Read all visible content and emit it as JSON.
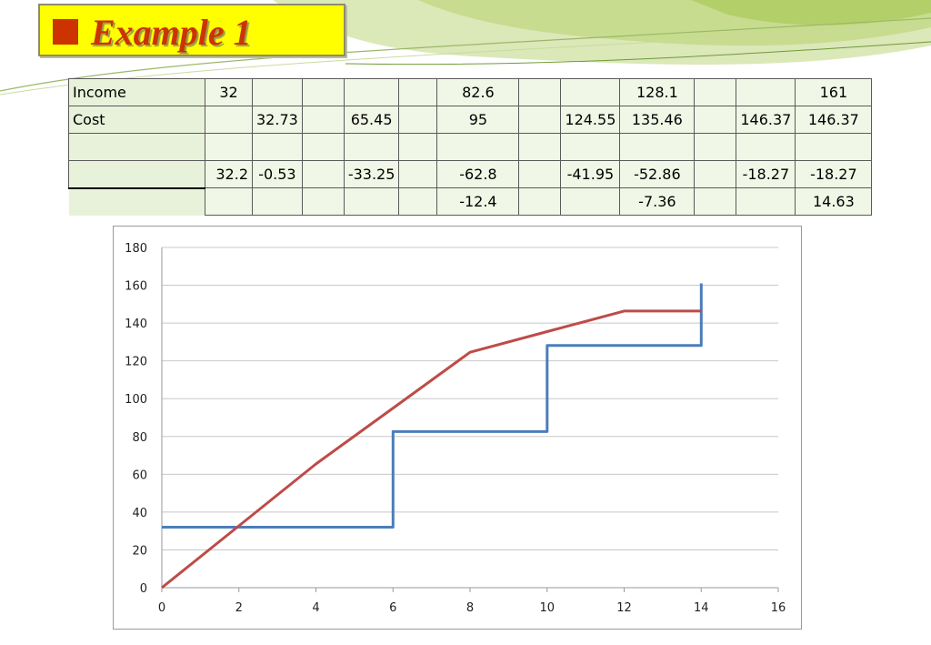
{
  "slide": {
    "title": "Example 1"
  },
  "table": {
    "rows": [
      {
        "label": "Income",
        "cells": [
          "32",
          "",
          "",
          "",
          "",
          "82.6",
          "",
          "",
          "128.1",
          "",
          "",
          "161"
        ]
      },
      {
        "label": "Cost",
        "cells": [
          "",
          "32.73",
          "",
          "65.45",
          "",
          "95",
          "",
          "124.55",
          "135.46",
          "",
          "146.37",
          "146.37"
        ]
      },
      {
        "label": "",
        "cells": [
          "",
          "",
          "",
          "",
          "",
          "",
          "",
          "",
          "",
          "",
          "",
          ""
        ]
      },
      {
        "label": "",
        "cells": [
          "32.2",
          "-0.53",
          "",
          "-33.25",
          "",
          "-62.8",
          "",
          "-41.95",
          "-52.86",
          "",
          "-18.27",
          "-18.27"
        ]
      },
      {
        "label": "",
        "cells": [
          "",
          "",
          "",
          "",
          "",
          "-12.4",
          "",
          "",
          "-7.36",
          "",
          "",
          "14.63"
        ]
      }
    ]
  },
  "chart_data": {
    "type": "line",
    "xlim": [
      0,
      16
    ],
    "ylim": [
      0,
      180
    ],
    "xticks": [
      "0",
      "2",
      "4",
      "6",
      "8",
      "10",
      "12",
      "14",
      "16"
    ],
    "yticks": [
      "0",
      "20",
      "40",
      "60",
      "80",
      "100",
      "120",
      "140",
      "160",
      "180"
    ],
    "grid": true,
    "colors": {
      "income": "#4a7ebb",
      "cost": "#be4b48"
    },
    "series": [
      {
        "key": "income",
        "x": [
          0,
          6,
          6,
          10,
          10,
          14,
          14
        ],
        "y": [
          32,
          32,
          82.6,
          82.6,
          128.1,
          128.1,
          161
        ]
      },
      {
        "key": "cost",
        "x": [
          0,
          2,
          4,
          6,
          8,
          10,
          12,
          14
        ],
        "y": [
          0,
          32.73,
          65.45,
          95,
          124.55,
          135.46,
          146.37,
          146.37
        ]
      }
    ]
  }
}
